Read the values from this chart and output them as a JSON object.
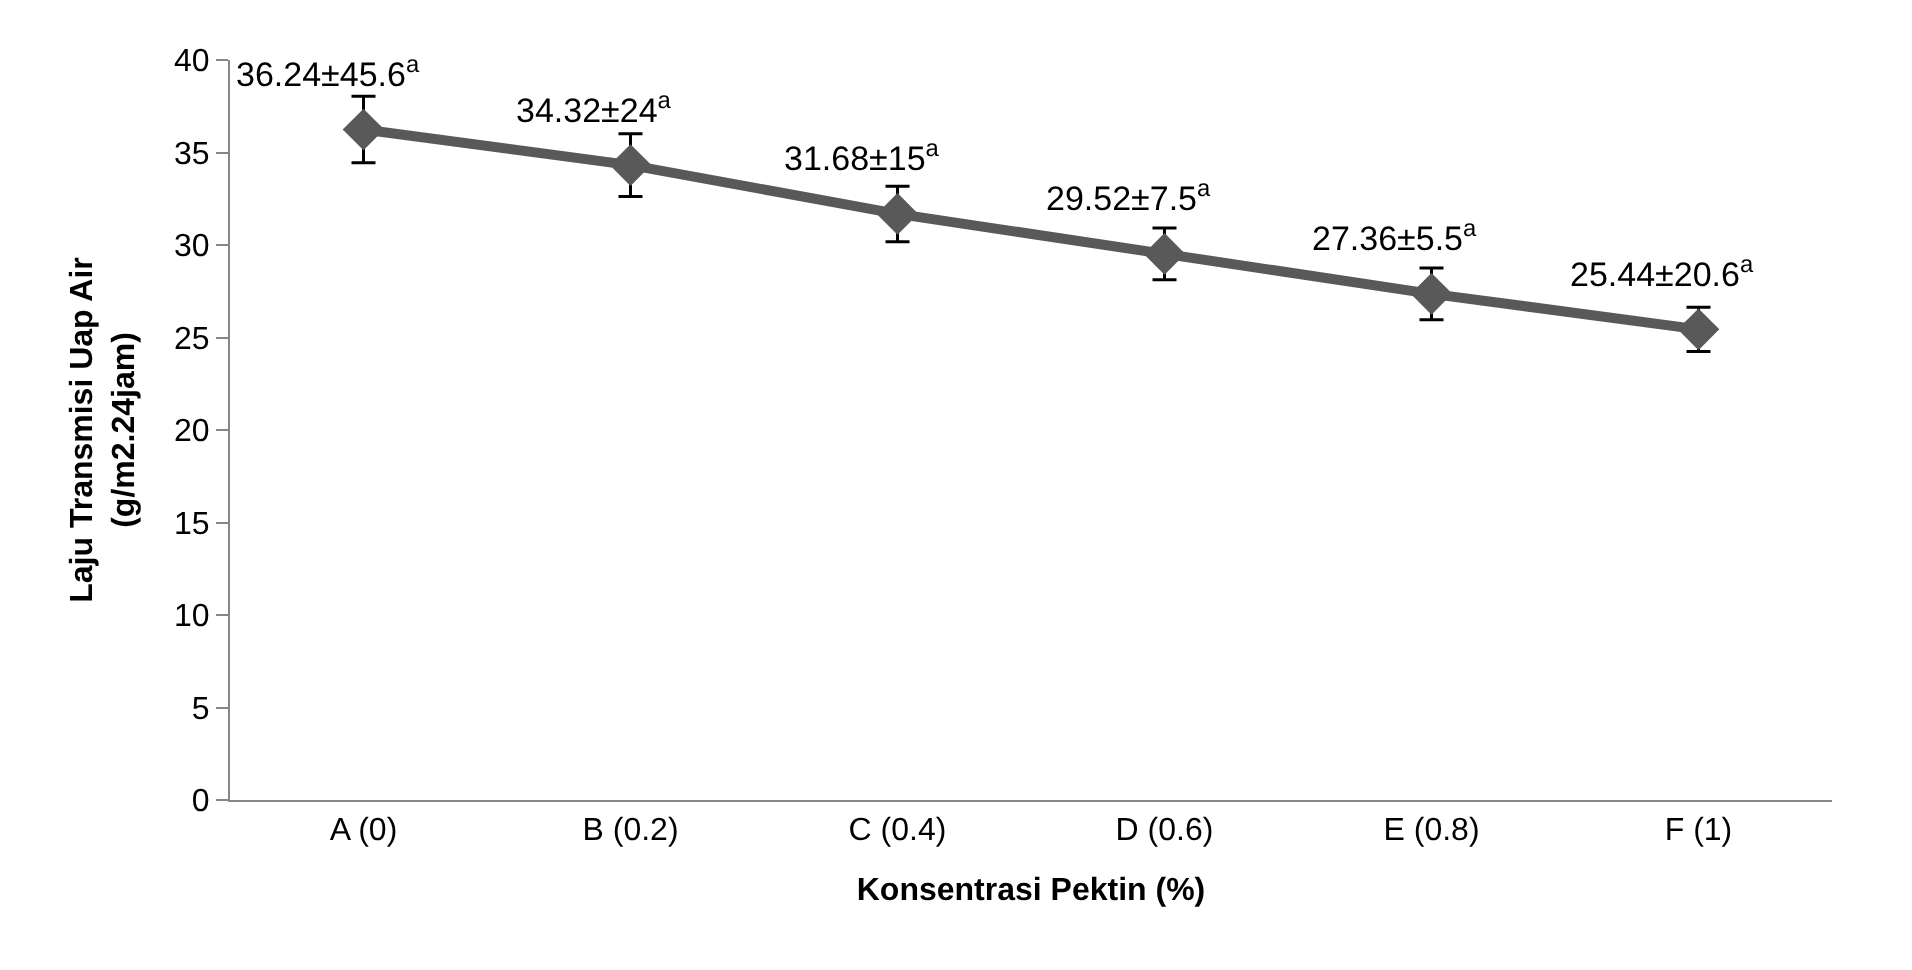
{
  "chart_data": {
    "type": "line",
    "xlabel": "Konsentrasi Pektin (%)",
    "ylabel": "Laju Transmisi Uap Air\n(g/m2.24jam)",
    "categories": [
      "A (0)",
      "B (0.2)",
      "C (0.4)",
      "D (0.6)",
      "E (0.8)",
      "F (1)"
    ],
    "series": [
      {
        "color": "#595959",
        "values": [
          36.24,
          34.32,
          31.68,
          29.52,
          27.36,
          25.44
        ],
        "errors": [
          1.8,
          1.7,
          1.5,
          1.4,
          1.4,
          1.2
        ],
        "value_labels": [
          "36.24±45.6$^{a}$",
          "34.32±24$^{a}$",
          "31.68±15$^{a}$",
          "29.52±7.5$^{a}$",
          "27.36±5.5$^{a}$",
          "25.44±20.6$^{a}$"
        ]
      }
    ],
    "ylim": [
      0,
      40
    ],
    "yticks": [
      0,
      5,
      10,
      15,
      20,
      25,
      30,
      35,
      40
    ],
    "marker": "diamond",
    "line_style": "solid",
    "legend": false
  }
}
